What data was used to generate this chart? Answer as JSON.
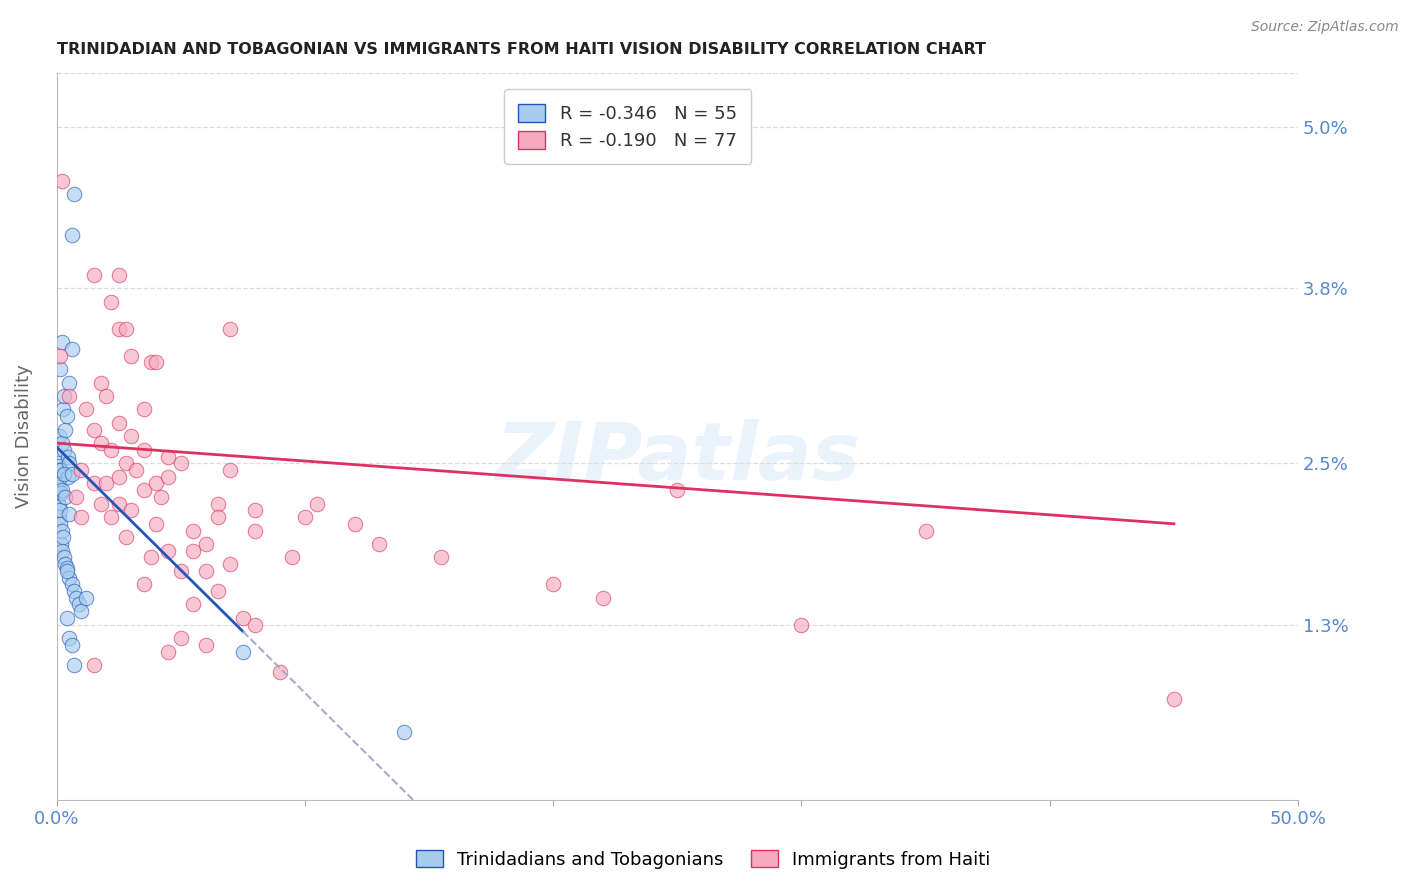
{
  "title": "TRINIDADIAN AND TOBAGONIAN VS IMMIGRANTS FROM HAITI VISION DISABILITY CORRELATION CHART",
  "source": "Source: ZipAtlas.com",
  "ylabel": "Vision Disability",
  "ytick_labels": [
    "5.0%",
    "3.8%",
    "2.5%",
    "1.3%"
  ],
  "ytick_values": [
    5.0,
    3.8,
    2.5,
    1.3
  ],
  "xlim": [
    0.0,
    50.0
  ],
  "ylim": [
    0.0,
    5.4
  ],
  "legend_blue_r": "R = -0.346",
  "legend_blue_n": "N = 55",
  "legend_pink_r": "R = -0.190",
  "legend_pink_n": "N = 77",
  "blue_scatter_x": [
    0.05,
    0.05,
    0.07,
    0.08,
    0.08,
    0.09,
    0.1,
    0.1,
    0.1,
    0.12,
    0.12,
    0.15,
    0.15,
    0.18,
    0.18,
    0.2,
    0.2,
    0.2,
    0.22,
    0.25,
    0.25,
    0.3,
    0.3,
    0.3,
    0.35,
    0.35,
    0.4,
    0.4,
    0.45,
    0.5,
    0.5,
    0.5,
    0.6,
    0.6,
    0.7,
    0.7,
    0.8,
    0.9,
    1.0,
    0.4,
    0.5,
    0.6,
    0.7,
    1.2,
    0.2,
    0.6,
    0.15,
    0.35,
    0.45,
    0.3,
    0.4,
    0.5,
    0.6,
    14.0,
    7.5
  ],
  "blue_scatter_y": [
    2.5,
    2.2,
    2.35,
    2.48,
    2.18,
    2.32,
    2.7,
    2.38,
    2.1,
    2.45,
    2.15,
    2.45,
    2.05,
    2.28,
    1.9,
    2.65,
    2.3,
    2.0,
    1.85,
    2.9,
    1.95,
    3.0,
    2.6,
    1.8,
    2.75,
    1.75,
    2.85,
    1.72,
    2.55,
    3.1,
    2.5,
    1.65,
    4.2,
    1.6,
    4.5,
    1.55,
    1.5,
    1.45,
    1.4,
    1.35,
    1.2,
    1.15,
    1.0,
    1.5,
    3.4,
    3.35,
    3.2,
    2.25,
    2.4,
    2.42,
    1.7,
    2.12,
    2.42,
    0.5,
    1.1
  ],
  "pink_scatter_x": [
    0.15,
    0.2,
    0.5,
    0.8,
    1.0,
    1.0,
    1.2,
    1.5,
    1.5,
    1.5,
    1.5,
    1.8,
    1.8,
    1.8,
    2.0,
    2.0,
    2.2,
    2.2,
    2.2,
    2.5,
    2.5,
    2.5,
    2.5,
    2.8,
    2.8,
    2.8,
    3.0,
    3.0,
    3.0,
    3.2,
    3.5,
    3.5,
    3.5,
    3.8,
    3.8,
    4.0,
    4.0,
    4.0,
    4.2,
    4.5,
    4.5,
    4.5,
    5.0,
    5.0,
    5.0,
    5.5,
    5.5,
    6.0,
    6.0,
    6.0,
    6.5,
    6.5,
    7.0,
    7.0,
    7.5,
    8.0,
    8.0,
    9.0,
    10.0,
    12.0,
    15.5,
    22.0,
    25.0,
    30.0,
    35.0,
    45.0,
    2.5,
    3.5,
    4.5,
    5.5,
    6.5,
    7.0,
    8.0,
    9.5,
    10.5,
    13.0,
    20.0
  ],
  "pink_scatter_y": [
    3.3,
    4.6,
    3.0,
    2.25,
    2.45,
    2.1,
    2.9,
    3.9,
    2.75,
    2.35,
    1.0,
    3.1,
    2.65,
    2.2,
    3.0,
    2.35,
    3.7,
    2.6,
    2.1,
    3.5,
    2.8,
    2.4,
    2.2,
    3.5,
    2.5,
    1.95,
    3.3,
    2.7,
    2.15,
    2.45,
    2.9,
    2.3,
    1.6,
    3.25,
    1.8,
    3.25,
    2.35,
    2.05,
    2.25,
    2.55,
    1.85,
    1.1,
    2.5,
    1.7,
    1.2,
    2.0,
    1.45,
    1.9,
    1.7,
    1.15,
    2.2,
    1.55,
    2.45,
    1.75,
    1.35,
    2.15,
    1.3,
    0.95,
    2.1,
    2.05,
    1.8,
    1.5,
    2.3,
    1.3,
    2.0,
    0.75,
    3.9,
    2.6,
    2.4,
    1.85,
    2.1,
    3.5,
    2.0,
    1.8,
    2.2,
    1.9,
    1.6
  ],
  "blue_line_x0": 0.0,
  "blue_line_y0": 2.62,
  "blue_line_x1": 7.5,
  "blue_line_y1": 1.25,
  "blue_line_solid_end": 7.5,
  "blue_line_dash_end": 50.0,
  "pink_line_x0": 0.0,
  "pink_line_y0": 2.65,
  "pink_line_x1": 45.0,
  "pink_line_y1": 2.05,
  "blue_color": "#a8ccee",
  "pink_color": "#f5aac0",
  "blue_line_color": "#2255bb",
  "pink_line_color": "#e03060",
  "dashed_line_color": "#aaaacc",
  "title_color": "#222222",
  "axis_label_color": "#5588cc",
  "grid_color": "#dddddd",
  "watermark": "ZIPatlas",
  "figsize": [
    14.06,
    8.92
  ],
  "dpi": 100
}
